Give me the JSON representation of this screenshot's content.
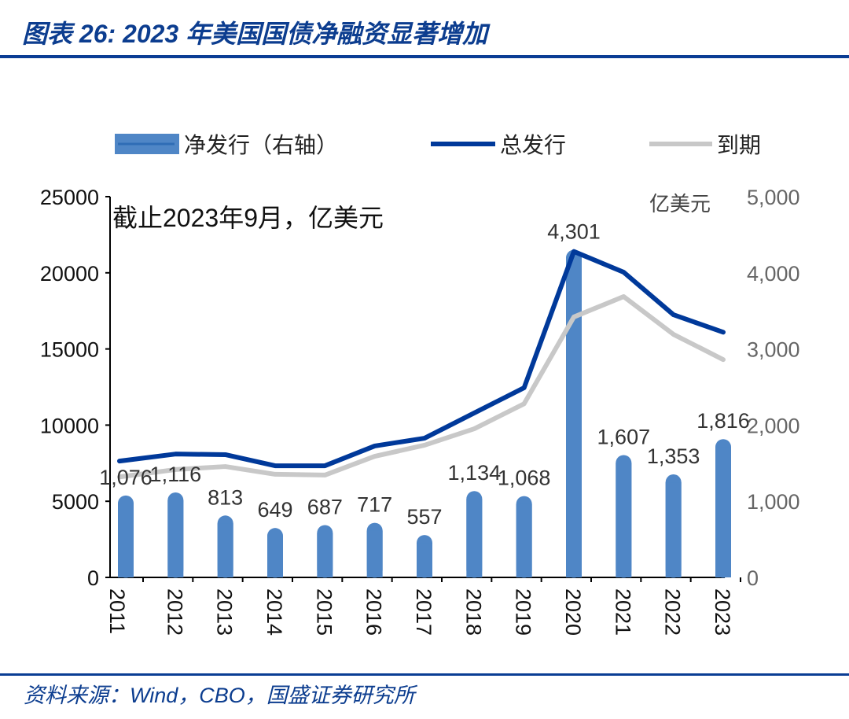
{
  "title": "图表 26:  2023 年美国国债净融资显著增加",
  "source": "资料来源：Wind，CBO，国盛证券研究所",
  "chart_data": {
    "type": "bar+line",
    "annotation": "截止2023年9月，亿美元",
    "right_unit": "亿美元",
    "categories": [
      "2011",
      "2012",
      "2013",
      "2014",
      "2015",
      "2016",
      "2017",
      "2018",
      "2019",
      "2020",
      "2021",
      "2022",
      "2023"
    ],
    "left_axis": {
      "ylim": [
        0,
        25000
      ],
      "ticks": [
        "0",
        "5000",
        "10000",
        "15000",
        "20000",
        "25000"
      ]
    },
    "right_axis": {
      "ylim": [
        0,
        5000
      ],
      "ticks": [
        "0",
        "1,000",
        "2,000",
        "3,000",
        "4,000",
        "5,000"
      ]
    },
    "legend_position": "top",
    "series": [
      {
        "name": "净发行（右轴）",
        "type": "bar",
        "axis": "right",
        "color": "#4f86c6",
        "values": [
          1076,
          1116,
          813,
          649,
          687,
          717,
          557,
          1134,
          1068,
          4301,
          1607,
          1353,
          1816
        ],
        "labels": [
          "1,076",
          "1,116",
          "813",
          "649",
          "687",
          "717",
          "557",
          "1,134",
          "1,068",
          "4,301",
          "1,607",
          "1,353",
          "1,816"
        ]
      },
      {
        "name": "总发行",
        "type": "line",
        "axis": "left",
        "color": "#00399a",
        "values": [
          7640,
          8100,
          8060,
          7330,
          7330,
          8630,
          9140,
          10800,
          12450,
          21400,
          20040,
          17250,
          16100
        ]
      },
      {
        "name": "到期",
        "type": "line",
        "axis": "left",
        "color": "#c8c8c8",
        "values": [
          6600,
          7080,
          7280,
          6770,
          6720,
          7950,
          8680,
          9760,
          11400,
          17100,
          18440,
          15960,
          14300
        ]
      }
    ]
  }
}
